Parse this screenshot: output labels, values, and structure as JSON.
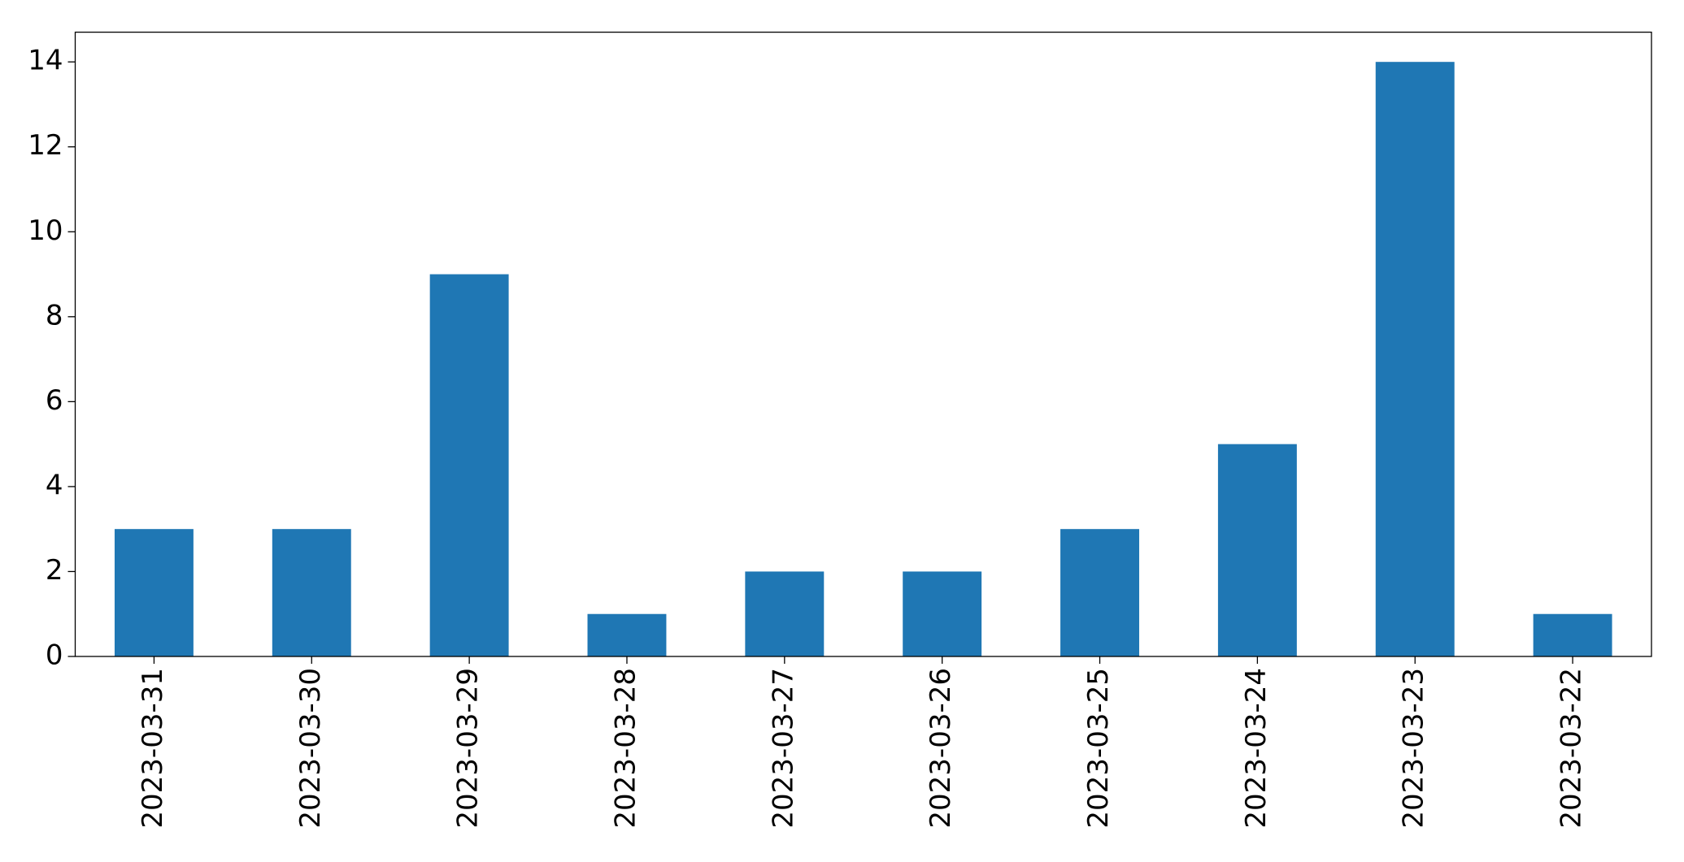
{
  "chart_data": {
    "type": "bar",
    "categories": [
      "2023-03-31",
      "2023-03-30",
      "2023-03-29",
      "2023-03-28",
      "2023-03-27",
      "2023-03-26",
      "2023-03-25",
      "2023-03-24",
      "2023-03-23",
      "2023-03-22"
    ],
    "values": [
      3,
      3,
      9,
      1,
      2,
      2,
      3,
      5,
      14,
      1
    ],
    "color": "#1f77b4",
    "ylim": [
      0,
      14.7
    ],
    "yticks": [
      0,
      2,
      4,
      6,
      8,
      10,
      12,
      14
    ],
    "grid": false
  }
}
